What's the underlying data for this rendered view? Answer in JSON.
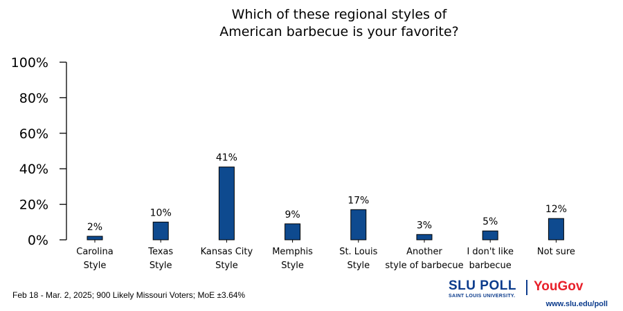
{
  "chart_data": {
    "type": "bar",
    "title_lines": [
      "Which of these regional styles of",
      "American barbecue is your favorite?"
    ],
    "categories": [
      [
        "Carolina",
        "Style"
      ],
      [
        "Texas",
        "Style"
      ],
      [
        "Kansas City",
        "Style"
      ],
      [
        "Memphis",
        "Style"
      ],
      [
        "St. Louis",
        "Style"
      ],
      [
        "Another",
        "style of barbecue"
      ],
      [
        "I don't like",
        "barbecue"
      ],
      [
        "Not sure"
      ]
    ],
    "values": [
      2,
      10,
      41,
      9,
      17,
      3,
      5,
      12
    ],
    "data_labels": [
      "2%",
      "10%",
      "41%",
      "9%",
      "17%",
      "3%",
      "5%",
      "12%"
    ],
    "ylim": [
      0,
      100
    ],
    "y_ticks": [
      0,
      20,
      40,
      60,
      80,
      100
    ],
    "y_tick_labels": [
      "0%",
      "20%",
      "40%",
      "60%",
      "80%",
      "100%"
    ],
    "bar_color": "#0e4a8f",
    "grid": false,
    "legend": "none"
  },
  "footer": {
    "note": "Feb 18 - Mar. 2, 2025; 900 Likely Missouri Voters; MoE ±3.64%",
    "slu_poll": "SLU POLL",
    "slu_sub": "SAINT LOUIS UNIVERSITY.",
    "yougov": "YouGov",
    "url": "www.slu.edu/poll"
  },
  "colors": {
    "slu_blue": "#0b3b8c",
    "yougov_red": "#e8202a"
  }
}
